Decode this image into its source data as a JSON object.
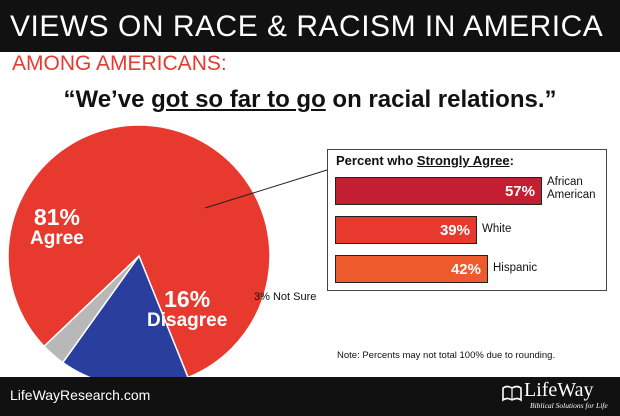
{
  "header": {
    "title": "VIEWS ON RACE & RACISM IN AMERICA",
    "subtitle": "AMONG AMERICANS:"
  },
  "quote": {
    "open": "“We’ve ",
    "emphasis": "got so far to go",
    "close": " on racial relations.”"
  },
  "inset": {
    "title_prefix": "Percent who ",
    "title_emphasis": "Strongly Agree",
    "title_suffix": ":"
  },
  "note": "Note: Percents may not total 100% due to rounding.",
  "footer": {
    "url": "LifeWayResearch.com",
    "brand": "LifeWay",
    "tagline": "Biblical Solutions for Life"
  },
  "colors": {
    "agree": "#e8392e",
    "disagree": "#2a3e9e",
    "not_sure": "#b8b8b8",
    "african_american": "#c41e32",
    "white": "#e8392e",
    "hispanic": "#ef5a2c"
  },
  "chart_data": [
    {
      "type": "pie",
      "title": "“We’ve got so far to go on racial relations.”",
      "slices": [
        {
          "label": "Agree",
          "display": "81%",
          "value": 81,
          "color": "#e8392e"
        },
        {
          "label": "Disagree",
          "display": "16%",
          "value": 16,
          "color": "#2a3e9e"
        },
        {
          "label": "Not Sure",
          "display": "3%",
          "value": 3,
          "color": "#b8b8b8"
        }
      ],
      "not_sure_label": "3% Not Sure"
    },
    {
      "type": "bar",
      "title": "Percent who Strongly Agree:",
      "orientation": "horizontal",
      "categories": [
        "African American",
        "White",
        "Hispanic"
      ],
      "category_lines": [
        [
          "African",
          "American"
        ],
        [
          "White"
        ],
        [
          "Hispanic"
        ]
      ],
      "values": [
        57,
        39,
        42
      ],
      "labels": [
        "57%",
        "39%",
        "42%"
      ],
      "colors": [
        "#c41e32",
        "#e8392e",
        "#ef5a2c"
      ],
      "xlim": [
        0,
        57
      ]
    }
  ]
}
